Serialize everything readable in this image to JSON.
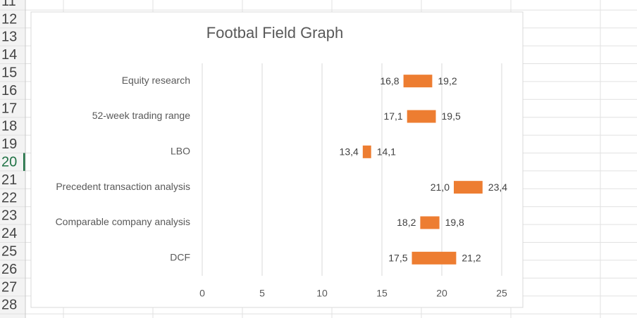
{
  "spreadsheet": {
    "row_numbers": [
      11,
      12,
      13,
      14,
      15,
      16,
      17,
      18,
      19,
      20,
      21,
      22,
      23,
      24,
      25,
      26,
      27,
      28
    ],
    "selected_row": 20
  },
  "chart_data": {
    "type": "floating-bar",
    "title": "Footbal Field Graph",
    "categories": [
      "Equity research",
      "52-week trading range",
      "LBO",
      "Precedent transaction analysis",
      "Comparable company analysis",
      "DCF"
    ],
    "series": [
      {
        "values": [
          16.8,
          17.1,
          13.4,
          21.0,
          18.2,
          17.5
        ],
        "value_labels": [
          "16,8",
          "17,1",
          "13,4",
          "21,0",
          "18,2",
          "17,5"
        ]
      },
      {
        "values": [
          19.2,
          19.5,
          14.1,
          23.4,
          19.8,
          21.2
        ],
        "value_labels": [
          "19,2",
          "19,5",
          "14,1",
          "23,4",
          "19,8",
          "21,2"
        ]
      }
    ],
    "color": "#ed7d31",
    "xlim": [
      0,
      25
    ],
    "xticks": [
      0,
      5,
      10,
      15,
      20,
      25
    ],
    "grid": true
  }
}
